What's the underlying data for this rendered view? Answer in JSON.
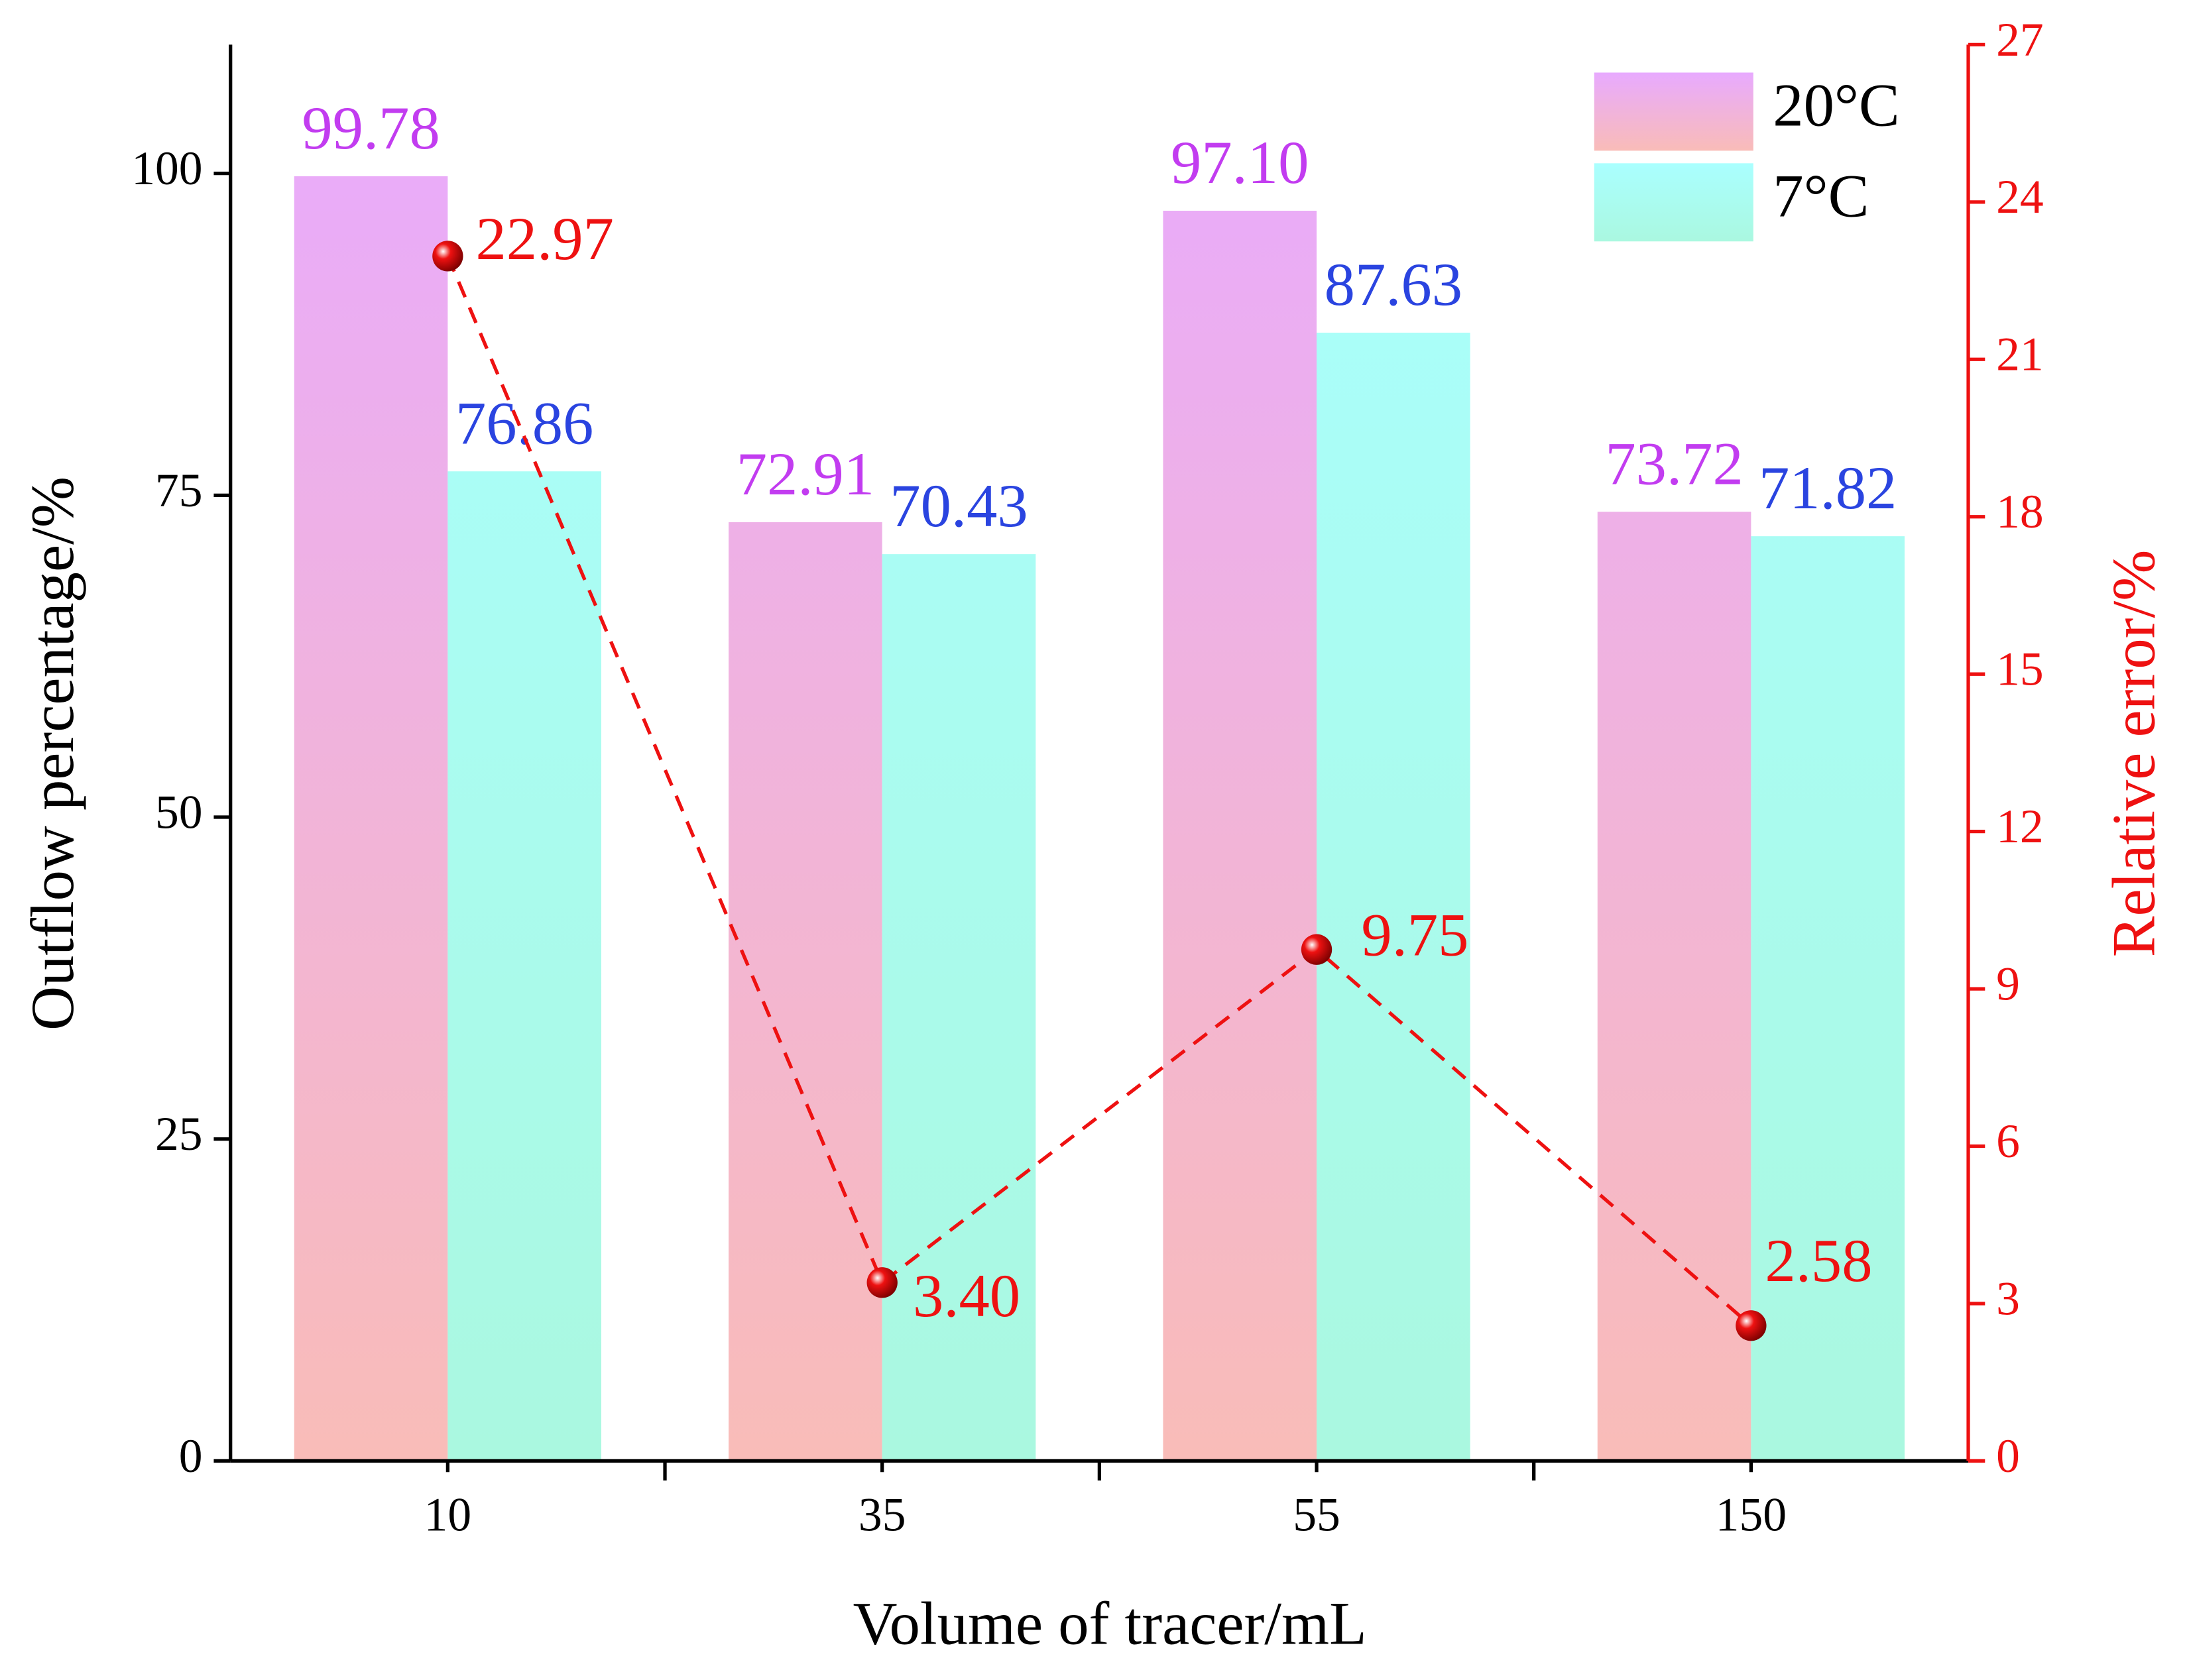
{
  "chart_data": {
    "type": "bar",
    "xlabel": "Volume of tracer/mL",
    "ylabel": "Outflow percentage/%",
    "y2label": "Relative error/%",
    "categories": [
      "10",
      "35",
      "55",
      "150"
    ],
    "series": [
      {
        "name": "20°C",
        "type": "bar",
        "color": "#c23cf0",
        "gradient": [
          "#e8aaff",
          "#f9bcb8"
        ],
        "values": [
          99.78,
          72.91,
          97.1,
          73.72
        ],
        "value_labels": [
          "99.78",
          "72.91",
          "97.10",
          "73.72"
        ]
      },
      {
        "name": "7°C",
        "type": "bar",
        "color": "#2a44e0",
        "gradient": [
          "#aaffff",
          "#aaf8e0"
        ],
        "values": [
          76.86,
          70.43,
          87.63,
          71.82
        ],
        "value_labels": [
          "76.86",
          "70.43",
          "87.63",
          "71.82"
        ]
      },
      {
        "type": "line",
        "axis": "y2",
        "color": "#ee1111",
        "dashed": true,
        "values": [
          22.97,
          3.4,
          9.75,
          2.58
        ],
        "value_labels": [
          "22.97",
          "3.40",
          "9.75",
          "2.58"
        ]
      }
    ],
    "ylim": [
      0,
      110
    ],
    "yticks": [
      0,
      25,
      50,
      75,
      100
    ],
    "y2lim": [
      0,
      27
    ],
    "y2ticks": [
      0,
      3,
      6,
      9,
      12,
      15,
      18,
      21,
      24,
      27
    ],
    "legend": "upper right"
  }
}
